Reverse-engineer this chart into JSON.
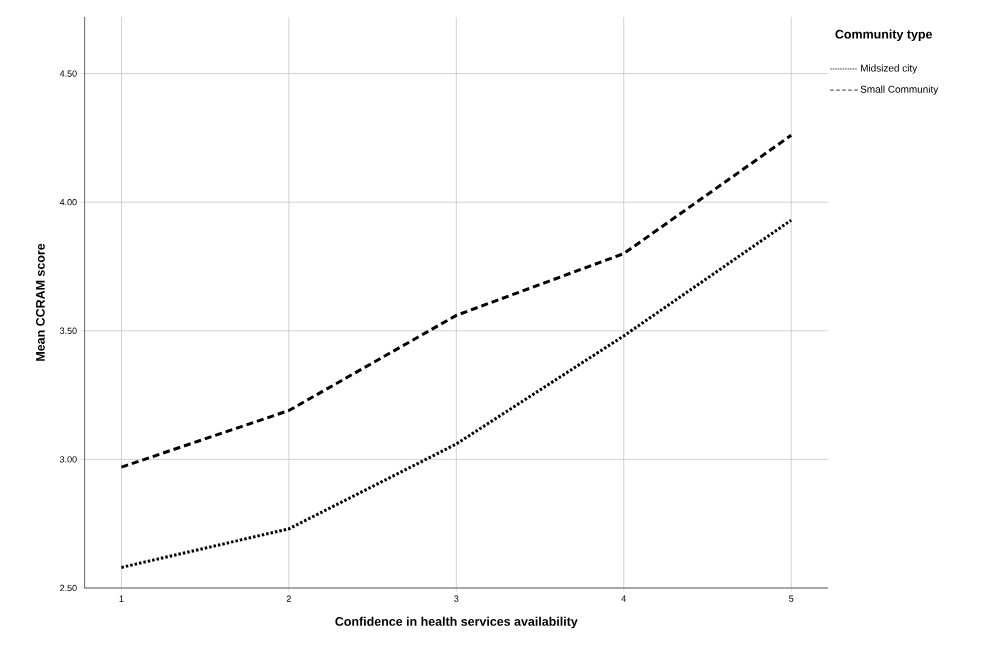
{
  "chart_data": {
    "type": "line",
    "xlabel": "Confidence in health services availability",
    "ylabel": "Mean CCRAM score",
    "legend_title": "Community type",
    "x": [
      1,
      2,
      3,
      4,
      5
    ],
    "series": [
      {
        "name": "Midsized city",
        "color": "#000000",
        "line_style": "dotted",
        "values": [
          2.58,
          2.73,
          3.06,
          3.48,
          3.93
        ]
      },
      {
        "name": "Small Community",
        "color": "#000000",
        "line_style": "dashed",
        "values": [
          2.97,
          3.19,
          3.56,
          3.8,
          4.26
        ]
      }
    ],
    "xlim": [
      0.78,
      5.22
    ],
    "xticks": [
      1,
      2,
      3,
      4,
      5
    ],
    "ylim": [
      2.5,
      4.72
    ],
    "yticks": [
      {
        "value": 2.5,
        "label": "2.50"
      },
      {
        "value": 3.0,
        "label": "3.00"
      },
      {
        "value": 3.5,
        "label": "3.50"
      },
      {
        "value": 4.0,
        "label": "4.00"
      },
      {
        "value": 4.5,
        "label": "4.50"
      }
    ],
    "grid": true,
    "legend": "top right",
    "marker": "none"
  }
}
